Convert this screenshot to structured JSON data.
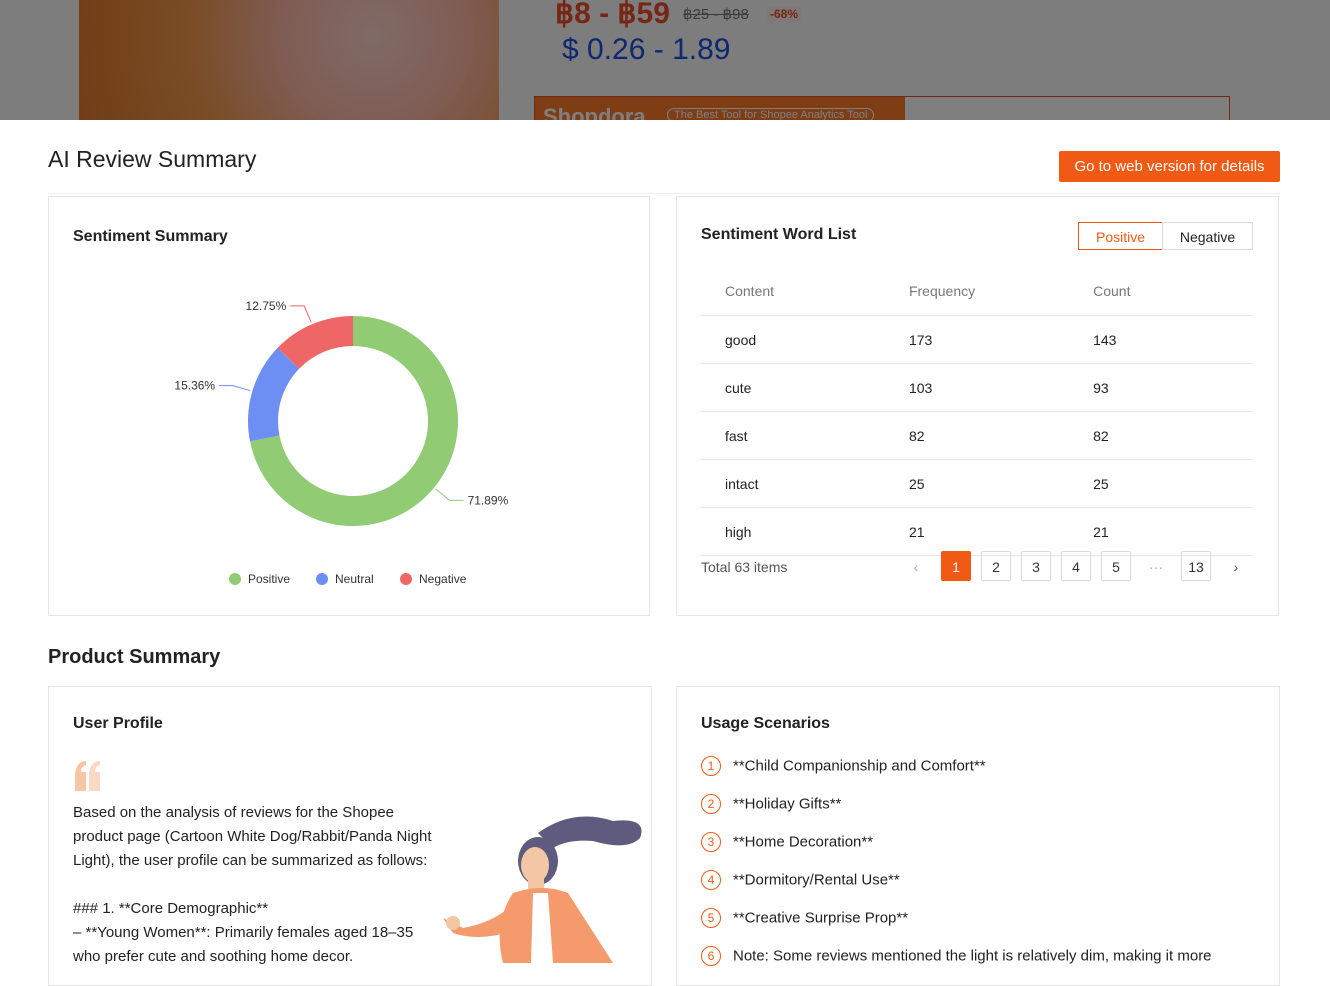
{
  "product": {
    "price": "฿8 - ฿59",
    "original_price": "฿25 - ฿98",
    "discount": "-68%",
    "usd_price": "$ 0.26 - 1.89",
    "banner_brand": "Shopdora",
    "banner_tagline": "The Best Tool for Shopee Analytics Tool"
  },
  "header": {
    "title": "AI Review Summary",
    "button": "Go to web version for details"
  },
  "sentiment_summary": {
    "title": "Sentiment Summary",
    "chart_data": {
      "type": "donut",
      "categories": [
        "Positive",
        "Neutral",
        "Negative"
      ],
      "values": [
        71.89,
        15.36,
        12.75
      ],
      "value_labels": [
        "71.89%",
        "15.36%",
        "12.75%"
      ],
      "colors": [
        "#91cc75",
        "#6d8ff3",
        "#ee6666"
      ]
    }
  },
  "word_list": {
    "title": "Sentiment Word List",
    "tabs": [
      "Positive",
      "Negative"
    ],
    "columns": [
      "Content",
      "Frequency",
      "Count"
    ],
    "rows": [
      [
        "good",
        173,
        143
      ],
      [
        "cute",
        103,
        93
      ],
      [
        "fast",
        82,
        82
      ],
      [
        "intact",
        25,
        25
      ],
      [
        "high",
        21,
        21
      ]
    ],
    "total": "Total 63 items",
    "pages": [
      "1",
      "2",
      "3",
      "4",
      "5",
      "···",
      "13"
    ]
  },
  "product_summary": {
    "title": "Product Summary",
    "user_profile": {
      "title": "User Profile",
      "paragraphs": [
        "Based on the analysis of reviews for the Shopee product page (Cartoon White Dog/Rabbit/Panda Night Light), the user profile can be summarized as follows:",
        "### 1. **Core Demographic**",
        "– **Young Women**: Primarily females aged 18–35 who prefer cute and soothing home decor."
      ]
    },
    "usage_scenarios": {
      "title": "Usage Scenarios",
      "items": [
        {
          "number": "1",
          "text": "**Child Companionship and Comfort**"
        },
        {
          "number": "2",
          "text": "**Holiday Gifts**"
        },
        {
          "number": "3",
          "text": "**Home Decoration**"
        },
        {
          "number": "4",
          "text": "**Dormitory/Rental Use**"
        },
        {
          "number": "5",
          "text": "**Creative Surprise Prop**"
        },
        {
          "number": "6",
          "text": "Note: Some reviews mentioned the light is relatively dim, making it more"
        }
      ]
    }
  }
}
